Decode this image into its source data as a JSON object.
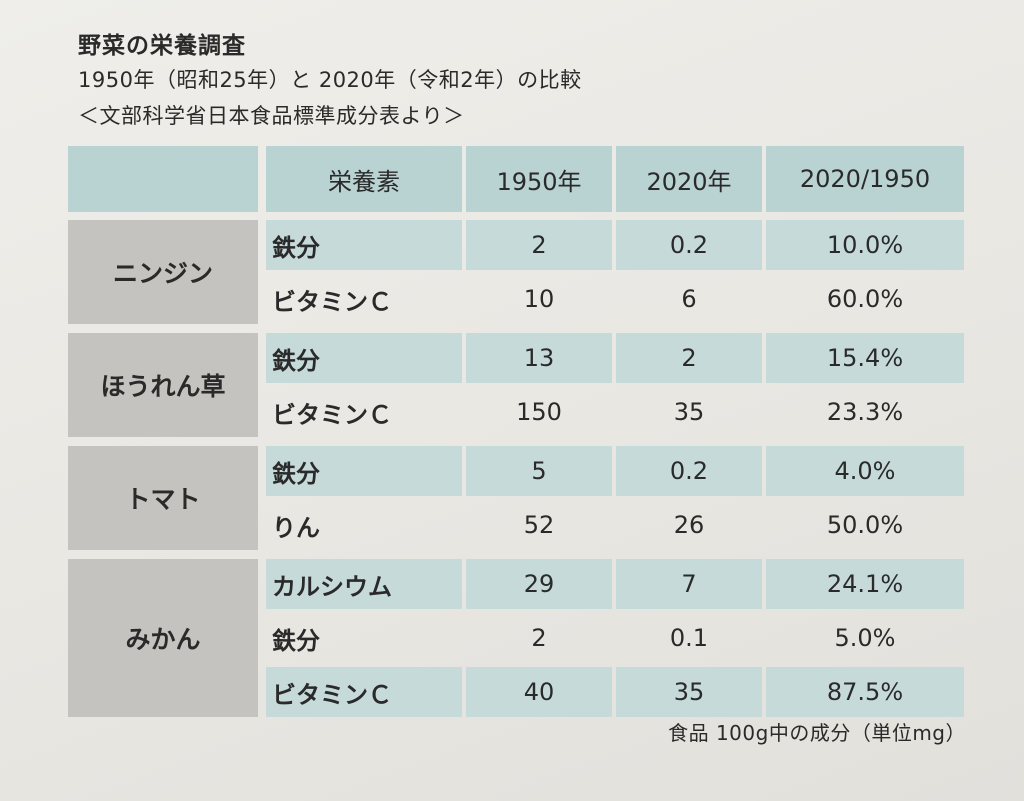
{
  "header": {
    "title": "野菜の栄養調査",
    "subtitle": "1950年（昭和25年）と 2020年（令和2年）の比較",
    "source": "＜文部科学省日本食品標準成分表より＞"
  },
  "table": {
    "columns": [
      "栄養素",
      "1950年",
      "2020年",
      "2020/1950"
    ],
    "groups": [
      {
        "vegetable": "ニンジン",
        "rows": [
          {
            "nutrient": "鉄分",
            "y1950": "2",
            "y2020": "0.2",
            "ratio": "10.0%"
          },
          {
            "nutrient": "ビタミンＣ",
            "y1950": "10",
            "y2020": "6",
            "ratio": "60.0%"
          }
        ]
      },
      {
        "vegetable": "ほうれん草",
        "rows": [
          {
            "nutrient": "鉄分",
            "y1950": "13",
            "y2020": "2",
            "ratio": "15.4%"
          },
          {
            "nutrient": "ビタミンＣ",
            "y1950": "150",
            "y2020": "35",
            "ratio": "23.3%"
          }
        ]
      },
      {
        "vegetable": "トマト",
        "rows": [
          {
            "nutrient": "鉄分",
            "y1950": "5",
            "y2020": "0.2",
            "ratio": "4.0%"
          },
          {
            "nutrient": "りん",
            "y1950": "52",
            "y2020": "26",
            "ratio": "50.0%"
          }
        ]
      },
      {
        "vegetable": "みかん",
        "rows": [
          {
            "nutrient": "カルシウム",
            "y1950": "29",
            "y2020": "7",
            "ratio": "24.1%"
          },
          {
            "nutrient": "鉄分",
            "y1950": "2",
            "y2020": "0.1",
            "ratio": "5.0%"
          },
          {
            "nutrient": "ビタミンＣ",
            "y1950": "40",
            "y2020": "35",
            "ratio": "87.5%"
          }
        ]
      }
    ]
  },
  "footnote": "食品 100g中の成分（単位mg）",
  "colors": {
    "header_bg": "#b9d2d2",
    "row_teal": "#c6dada",
    "vegetable_bg": "#c5c3bf"
  }
}
